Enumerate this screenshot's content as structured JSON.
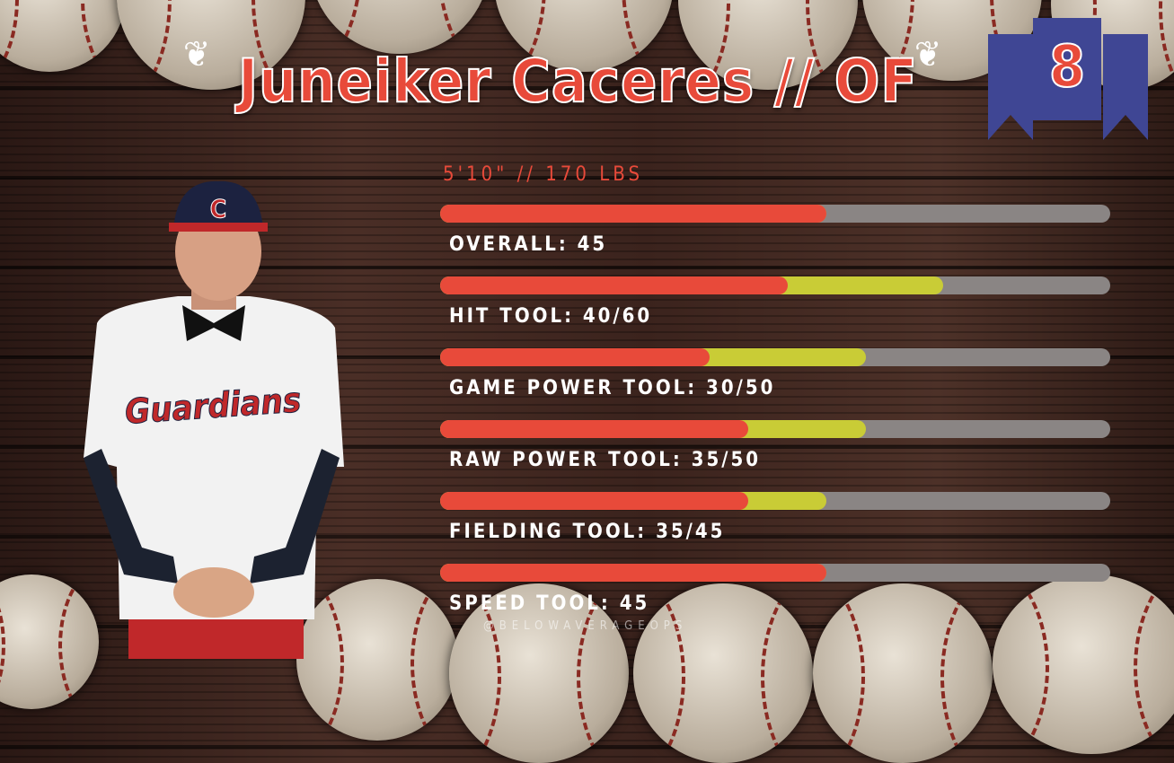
{
  "title": "Juneiker Caceres // OF",
  "number": "8",
  "measurements": "5'10\" // 170 LBS",
  "jersey_text": "Guardians",
  "cap_logo": "C",
  "watermark": "@BELOWAVERAGEOPS",
  "scale_max": 80,
  "colors": {
    "current": "#e84a3a",
    "potential": "#c9cc36",
    "track": "#8a8584",
    "ribbon": "#3f4694"
  },
  "tools": [
    {
      "label": "OVERALL: 45",
      "current": 45,
      "potential": 45
    },
    {
      "label": "HIT TOOL: 40/60",
      "current": 40,
      "potential": 60
    },
    {
      "label": "GAME POWER TOOL: 30/50",
      "current": 30,
      "potential": 50
    },
    {
      "label": "RAW POWER TOOL: 35/50",
      "current": 35,
      "potential": 50
    },
    {
      "label": "FIELDING TOOL: 35/45",
      "current": 35,
      "potential": 45
    },
    {
      "label": "SPEED TOOL: 45",
      "current": 45,
      "potential": 45
    }
  ]
}
